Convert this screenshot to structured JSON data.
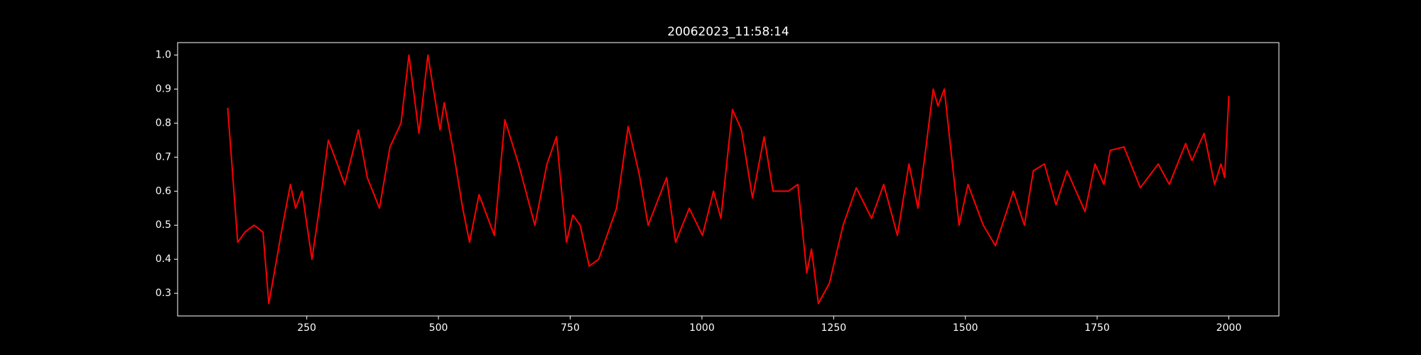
{
  "chart_data": {
    "type": "line",
    "title": "20062023_11:58:14",
    "x": [
      100,
      107,
      119,
      133,
      150,
      167,
      178,
      185,
      202,
      219,
      229,
      241,
      260,
      274,
      291,
      308,
      322,
      348,
      365,
      388,
      408,
      429,
      444,
      463,
      480,
      503,
      511,
      528,
      546,
      559,
      577,
      606,
      626,
      652,
      683,
      706,
      724,
      743,
      755,
      769,
      786,
      804,
      838,
      860,
      881,
      898,
      933,
      950,
      976,
      1001,
      1022,
      1036,
      1058,
      1075,
      1096,
      1118,
      1135,
      1164,
      1182,
      1199,
      1208,
      1221,
      1242,
      1268,
      1293,
      1322,
      1345,
      1371,
      1393,
      1410,
      1422,
      1439,
      1448,
      1460,
      1474,
      1488,
      1505,
      1534,
      1557,
      1591,
      1612,
      1629,
      1650,
      1672,
      1693,
      1727,
      1746,
      1763,
      1775,
      1801,
      1832,
      1866,
      1887,
      1918,
      1930,
      1953,
      1973,
      1985,
      1992,
      2000
    ],
    "values": [
      0.845,
      0.7,
      0.45,
      0.48,
      0.5,
      0.48,
      0.27,
      0.33,
      0.48,
      0.62,
      0.55,
      0.6,
      0.4,
      0.55,
      0.75,
      0.68,
      0.62,
      0.78,
      0.64,
      0.55,
      0.73,
      0.8,
      1.0,
      0.77,
      1.0,
      0.78,
      0.86,
      0.72,
      0.55,
      0.45,
      0.59,
      0.47,
      0.81,
      0.68,
      0.5,
      0.68,
      0.76,
      0.45,
      0.53,
      0.5,
      0.38,
      0.4,
      0.55,
      0.79,
      0.65,
      0.5,
      0.64,
      0.45,
      0.55,
      0.47,
      0.6,
      0.52,
      0.84,
      0.78,
      0.58,
      0.76,
      0.6,
      0.6,
      0.62,
      0.36,
      0.43,
      0.27,
      0.33,
      0.5,
      0.61,
      0.52,
      0.62,
      0.47,
      0.68,
      0.55,
      0.69,
      0.9,
      0.85,
      0.9,
      0.7,
      0.5,
      0.62,
      0.5,
      0.44,
      0.6,
      0.5,
      0.66,
      0.68,
      0.56,
      0.66,
      0.54,
      0.68,
      0.62,
      0.72,
      0.73,
      0.61,
      0.68,
      0.62,
      0.74,
      0.69,
      0.77,
      0.62,
      0.68,
      0.64,
      0.88
    ],
    "color": "#ff0000",
    "xlim": [
      5,
      2095
    ],
    "ylim": [
      0.2335,
      1.0365
    ],
    "xticks": [
      250,
      500,
      750,
      1000,
      1250,
      1500,
      1750,
      2000
    ],
    "yticks": [
      0.3,
      0.4,
      0.5,
      0.6,
      0.7,
      0.8,
      0.9,
      {
        "value": 1,
        "label": "1.0"
      }
    ]
  }
}
